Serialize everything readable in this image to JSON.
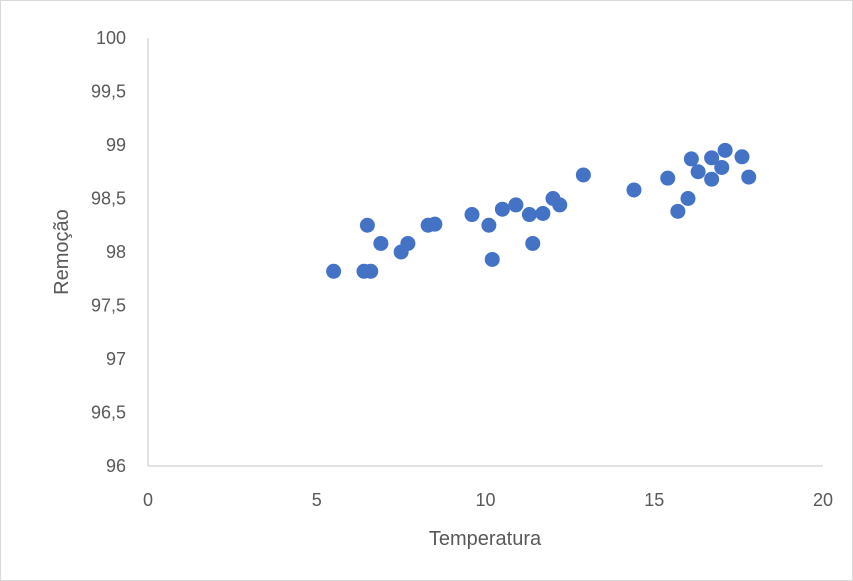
{
  "chart_data": {
    "type": "scatter",
    "title": "",
    "xlabel": "Temperatura",
    "ylabel": "Remoção",
    "xlim": [
      0,
      20
    ],
    "ylim": [
      96,
      100
    ],
    "x_ticks": [
      "0",
      "5",
      "10",
      "15",
      "20"
    ],
    "y_ticks": [
      "96",
      "96,5",
      "97",
      "97,5",
      "98",
      "98,5",
      "99",
      "99,5",
      "100"
    ],
    "grid": false,
    "legend": "none",
    "marker_color": "#4472c4",
    "series": [
      {
        "points": [
          [
            5.5,
            97.82
          ],
          [
            6.4,
            97.82
          ],
          [
            6.6,
            97.82
          ],
          [
            6.5,
            98.25
          ],
          [
            6.9,
            98.08
          ],
          [
            7.5,
            98.0
          ],
          [
            7.7,
            98.08
          ],
          [
            8.3,
            98.25
          ],
          [
            8.5,
            98.26
          ],
          [
            9.6,
            98.35
          ],
          [
            10.1,
            98.25
          ],
          [
            10.2,
            97.93
          ],
          [
            10.5,
            98.4
          ],
          [
            10.9,
            98.44
          ],
          [
            11.3,
            98.35
          ],
          [
            11.4,
            98.08
          ],
          [
            11.7,
            98.36
          ],
          [
            12.0,
            98.5
          ],
          [
            12.2,
            98.44
          ],
          [
            12.9,
            98.72
          ],
          [
            14.4,
            98.58
          ],
          [
            15.4,
            98.69
          ],
          [
            15.7,
            98.38
          ],
          [
            16.0,
            98.5
          ],
          [
            16.1,
            98.87
          ],
          [
            16.3,
            98.75
          ],
          [
            16.7,
            98.88
          ],
          [
            16.7,
            98.68
          ],
          [
            17.0,
            98.79
          ],
          [
            17.1,
            98.95
          ],
          [
            17.6,
            98.89
          ],
          [
            17.8,
            98.7
          ]
        ]
      }
    ]
  }
}
